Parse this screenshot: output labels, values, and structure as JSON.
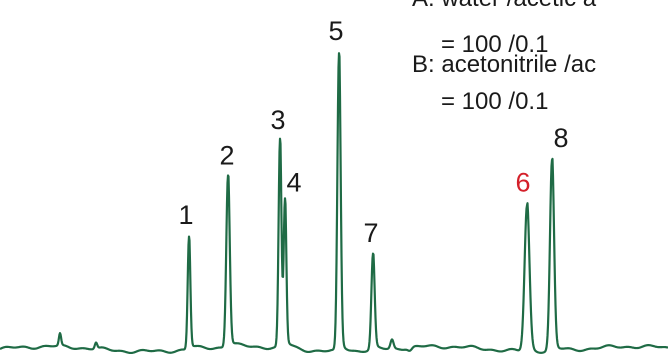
{
  "chart_data": {
    "type": "line",
    "title": "",
    "xlabel": "",
    "ylabel": "",
    "grid": false,
    "line_color": "#1f6b45",
    "highlight_color": "#d4202a",
    "peaks": [
      {
        "label": "1",
        "rel_height": 0.38,
        "highlight": false
      },
      {
        "label": "2",
        "rel_height": 0.58,
        "highlight": false
      },
      {
        "label": "3",
        "rel_height": 0.7,
        "highlight": false
      },
      {
        "label": "4",
        "rel_height": 0.49,
        "highlight": false
      },
      {
        "label": "5",
        "rel_height": 1.0,
        "highlight": false
      },
      {
        "label": "7",
        "rel_height": 0.32,
        "highlight": false
      },
      {
        "label": "6",
        "rel_height": 0.49,
        "highlight": true
      },
      {
        "label": "8",
        "rel_height": 0.64,
        "highlight": false
      }
    ],
    "annotations": [
      "A: water /acetic a",
      "= 100 /0.1",
      "B: acetonitrile /ac",
      "= 100 /0.1"
    ]
  }
}
